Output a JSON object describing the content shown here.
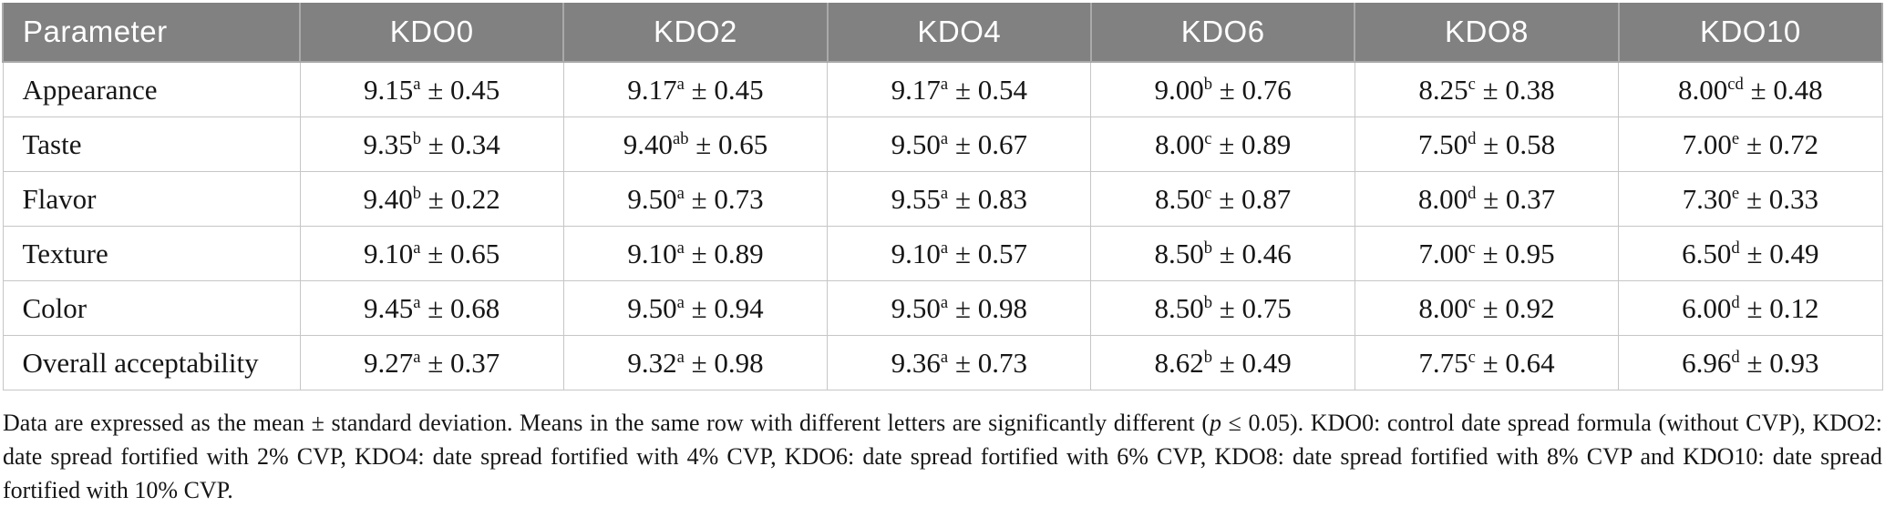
{
  "colors": {
    "header_bg": "#818181",
    "header_text": "#ffffff",
    "header_divider": "#a9a9a9",
    "border": "#c6c6c6",
    "text": "#161616"
  },
  "table": {
    "columns": [
      "Parameter",
      "KDO0",
      "KDO2",
      "KDO4",
      "KDO6",
      "KDO8",
      "KDO10"
    ],
    "value_separator": " ± ",
    "rows": [
      {
        "parameter": "Appearance",
        "values": [
          {
            "mean": "9.15",
            "sup": "a",
            "sd": "0.45"
          },
          {
            "mean": "9.17",
            "sup": "a",
            "sd": "0.45"
          },
          {
            "mean": "9.17",
            "sup": "a",
            "sd": "0.54"
          },
          {
            "mean": "9.00",
            "sup": "b",
            "sd": "0.76"
          },
          {
            "mean": "8.25",
            "sup": "c",
            "sd": "0.38"
          },
          {
            "mean": "8.00",
            "sup": "cd",
            "sd": "0.48"
          }
        ]
      },
      {
        "parameter": "Taste",
        "values": [
          {
            "mean": "9.35",
            "sup": "b",
            "sd": "0.34"
          },
          {
            "mean": "9.40",
            "sup": "ab",
            "sd": "0.65"
          },
          {
            "mean": "9.50",
            "sup": "a",
            "sd": "0.67"
          },
          {
            "mean": "8.00",
            "sup": "c",
            "sd": "0.89"
          },
          {
            "mean": "7.50",
            "sup": "d",
            "sd": "0.58"
          },
          {
            "mean": "7.00",
            "sup": "e",
            "sd": "0.72"
          }
        ]
      },
      {
        "parameter": "Flavor",
        "values": [
          {
            "mean": "9.40",
            "sup": "b",
            "sd": "0.22"
          },
          {
            "mean": "9.50",
            "sup": "a",
            "sd": "0.73"
          },
          {
            "mean": "9.55",
            "sup": "a",
            "sd": "0.83"
          },
          {
            "mean": "8.50",
            "sup": "c",
            "sd": "0.87"
          },
          {
            "mean": "8.00",
            "sup": "d",
            "sd": "0.37"
          },
          {
            "mean": "7.30",
            "sup": "e",
            "sd": "0.33"
          }
        ]
      },
      {
        "parameter": "Texture",
        "values": [
          {
            "mean": "9.10",
            "sup": "a",
            "sd": "0.65"
          },
          {
            "mean": "9.10",
            "sup": "a",
            "sd": "0.89"
          },
          {
            "mean": "9.10",
            "sup": "a",
            "sd": "0.57"
          },
          {
            "mean": "8.50",
            "sup": "b",
            "sd": "0.46"
          },
          {
            "mean": "7.00",
            "sup": "c",
            "sd": "0.95"
          },
          {
            "mean": "6.50",
            "sup": "d",
            "sd": "0.49"
          }
        ]
      },
      {
        "parameter": "Color",
        "values": [
          {
            "mean": "9.45",
            "sup": "a",
            "sd": "0.68"
          },
          {
            "mean": "9.50",
            "sup": "a",
            "sd": "0.94"
          },
          {
            "mean": "9.50",
            "sup": "a",
            "sd": "0.98"
          },
          {
            "mean": "8.50",
            "sup": "b",
            "sd": "0.75"
          },
          {
            "mean": "8.00",
            "sup": "c",
            "sd": "0.92"
          },
          {
            "mean": "6.00",
            "sup": "d",
            "sd": "0.12"
          }
        ]
      },
      {
        "parameter": "Overall acceptability",
        "values": [
          {
            "mean": "9.27",
            "sup": "a",
            "sd": "0.37"
          },
          {
            "mean": "9.32",
            "sup": "a",
            "sd": "0.98"
          },
          {
            "mean": "9.36",
            "sup": "a",
            "sd": "0.73"
          },
          {
            "mean": "8.62",
            "sup": "b",
            "sd": "0.49"
          },
          {
            "mean": "7.75",
            "sup": "c",
            "sd": "0.64"
          },
          {
            "mean": "6.96",
            "sup": "d",
            "sd": "0.93"
          }
        ]
      }
    ]
  },
  "footnote": {
    "segments": [
      {
        "italic": false,
        "text": "Data are expressed as the mean ± standard deviation. Means in the same row with different letters are significantly different ("
      },
      {
        "italic": true,
        "text": "p"
      },
      {
        "italic": false,
        "text": " ≤ 0.05). KDO0: control date spread formula (without CVP), KDO2: date spread fortified with 2% CVP, KDO4: date spread fortified with 4% CVP, KDO6: date spread fortified with 6% CVP, KDO8: date spread fortified with 8% CVP and KDO10: date spread fortified with 10% CVP."
      }
    ]
  }
}
